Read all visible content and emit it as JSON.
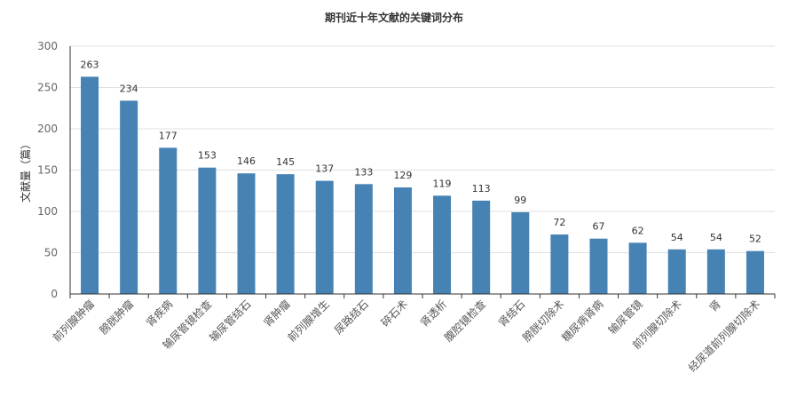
{
  "chart_data": {
    "type": "bar",
    "title": "期刊近十年文献的关键词分布",
    "xlabel": "",
    "ylabel": "文献量（篇）",
    "ylim": [
      0,
      300
    ],
    "yticks": [
      0,
      50,
      100,
      150,
      200,
      250,
      300
    ],
    "grid": true,
    "bar_color": "#4682b4",
    "categories": [
      "前列腺肿瘤",
      "膀胱肿瘤",
      "肾疾病",
      "输尿管镜检查",
      "输尿管结石",
      "肾肿瘤",
      "前列腺增生",
      "尿路结石",
      "碎石术",
      "肾透析",
      "腹腔镜检查",
      "肾结石",
      "膀胱切除术",
      "糖尿病肾病",
      "输尿管镜",
      "前列腺切除术",
      "肾",
      "经尿道前列腺切除术"
    ],
    "values": [
      263,
      234,
      177,
      153,
      146,
      145,
      137,
      133,
      129,
      119,
      113,
      99,
      72,
      67,
      62,
      54,
      54,
      52
    ]
  }
}
